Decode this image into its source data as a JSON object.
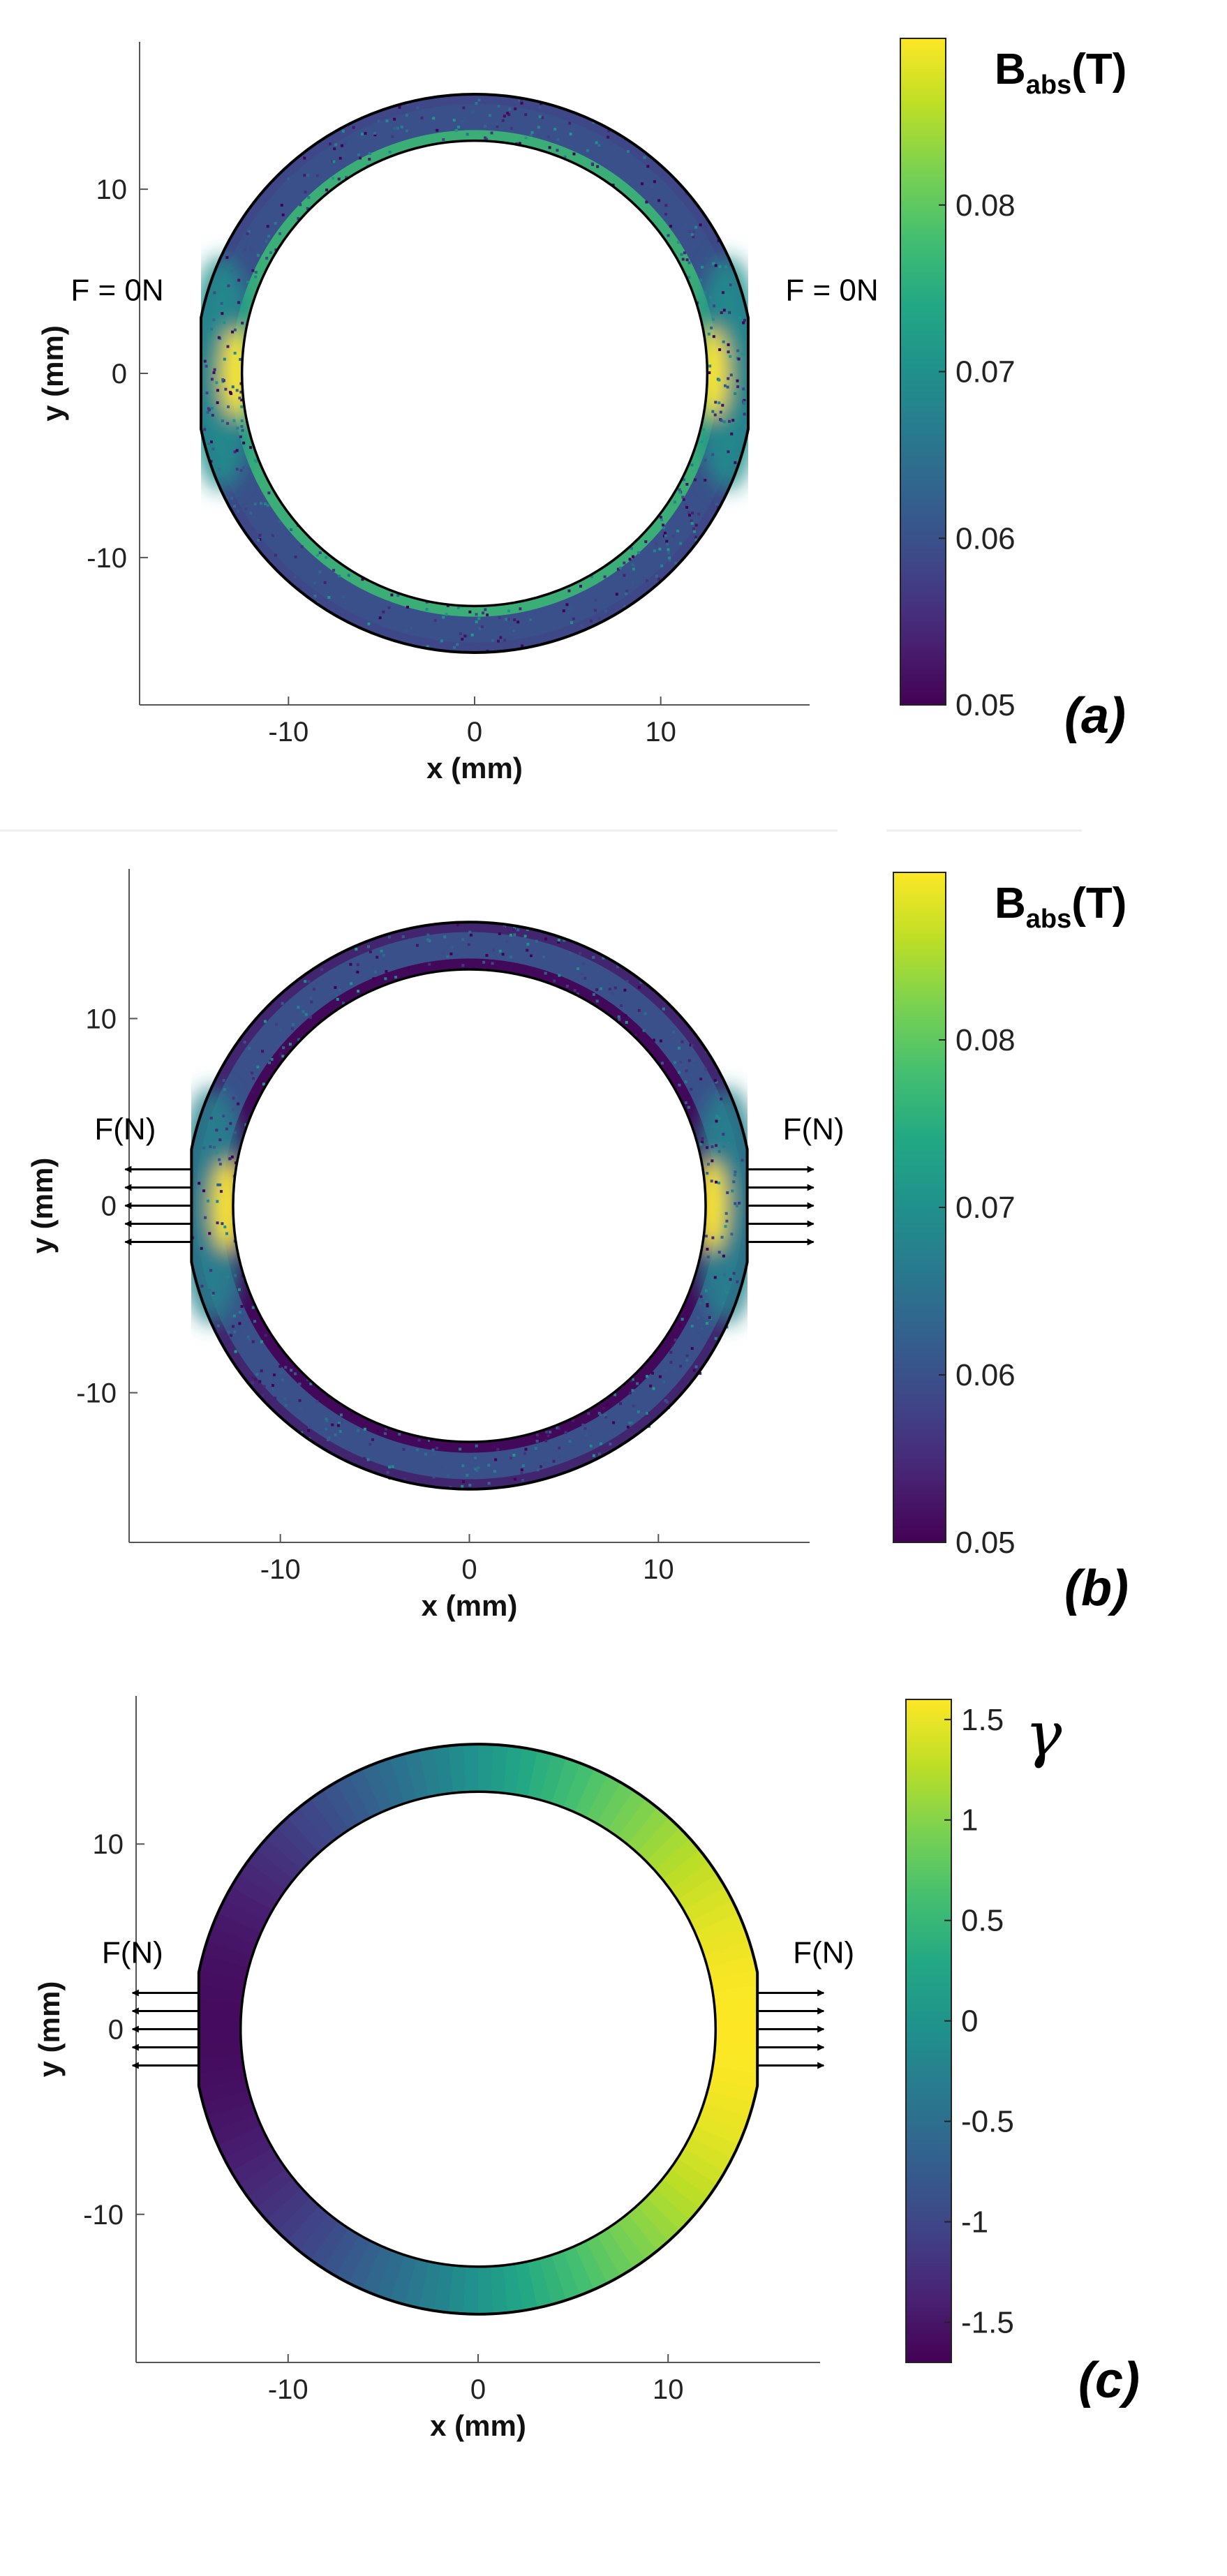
{
  "chart_data": [
    {
      "type": "heatmap",
      "panel_label": "(a)",
      "xlabel": "x (mm)",
      "ylabel": "y (mm)",
      "xlim": [
        -18,
        18
      ],
      "ylim": [
        -18,
        18
      ],
      "xticks": [
        -10,
        0,
        10
      ],
      "yticks": [
        -10,
        0,
        10
      ],
      "ring": {
        "inner_radius_mm": 12.5,
        "outer_radius_mm": 15,
        "flat_x_mm": 14.7
      },
      "colorbar": {
        "title": "Babs",
        "title_sub": "abs",
        "title_unit": "(T)",
        "min": 0.05,
        "max": 0.09,
        "ticks": [
          0.05,
          0.06,
          0.07,
          0.08
        ],
        "colormap": "viridis"
      },
      "field": {
        "base_value": 0.06,
        "inner_edge_value": 0.077,
        "side_peak_value": 0.09,
        "side_halo_value": 0.07,
        "outer_dip_value": 0.058
      },
      "annotations": [
        {
          "text": "F = 0N",
          "side": "left"
        },
        {
          "text": "F = 0N",
          "side": "right"
        }
      ],
      "force_arrows": 0
    },
    {
      "type": "heatmap",
      "panel_label": "(b)",
      "xlabel": "x (mm)",
      "ylabel": "y (mm)",
      "xlim": [
        -18,
        18
      ],
      "ylim": [
        -18,
        18
      ],
      "xticks": [
        -10,
        0,
        10
      ],
      "yticks": [
        -10,
        0,
        10
      ],
      "ring": {
        "inner_radius_mm": 12.5,
        "outer_radius_mm": 15,
        "flat_x_mm": 14.7
      },
      "colorbar": {
        "title": "Babs",
        "title_sub": "abs",
        "title_unit": "(T)",
        "min": 0.05,
        "max": 0.09,
        "ticks": [
          0.05,
          0.06,
          0.07,
          0.08
        ],
        "colormap": "viridis"
      },
      "field": {
        "base_value": 0.06,
        "inner_edge_value": 0.05,
        "side_peak_value": 0.09,
        "side_halo_value": 0.068,
        "outer_dip_value": 0.052
      },
      "annotations": [
        {
          "text": "F(N)",
          "side": "left"
        },
        {
          "text": "F(N)",
          "side": "right"
        }
      ],
      "force_arrows": 5
    },
    {
      "type": "heatmap",
      "panel_label": "(c)",
      "xlabel": "x (mm)",
      "ylabel": "y (mm)",
      "xlim": [
        -18,
        18
      ],
      "ylim": [
        -18,
        18
      ],
      "xticks": [
        -10,
        0,
        10
      ],
      "yticks": [
        -10,
        0,
        10
      ],
      "ring": {
        "inner_radius_mm": 12.5,
        "outer_radius_mm": 15,
        "flat_x_mm": 14.7
      },
      "colorbar": {
        "title": "γ",
        "min": -1.7,
        "max": 1.6,
        "ticks": [
          -1.5,
          -1,
          -0.5,
          0,
          0.5,
          1,
          1.5
        ],
        "colormap": "viridis"
      },
      "field": {
        "model": "gamma = 1.6 * cos(theta)",
        "amplitude": 1.6
      },
      "annotations": [
        {
          "text": "F(N)",
          "side": "left"
        },
        {
          "text": "F(N)",
          "side": "right"
        }
      ],
      "force_arrows": 5
    }
  ]
}
